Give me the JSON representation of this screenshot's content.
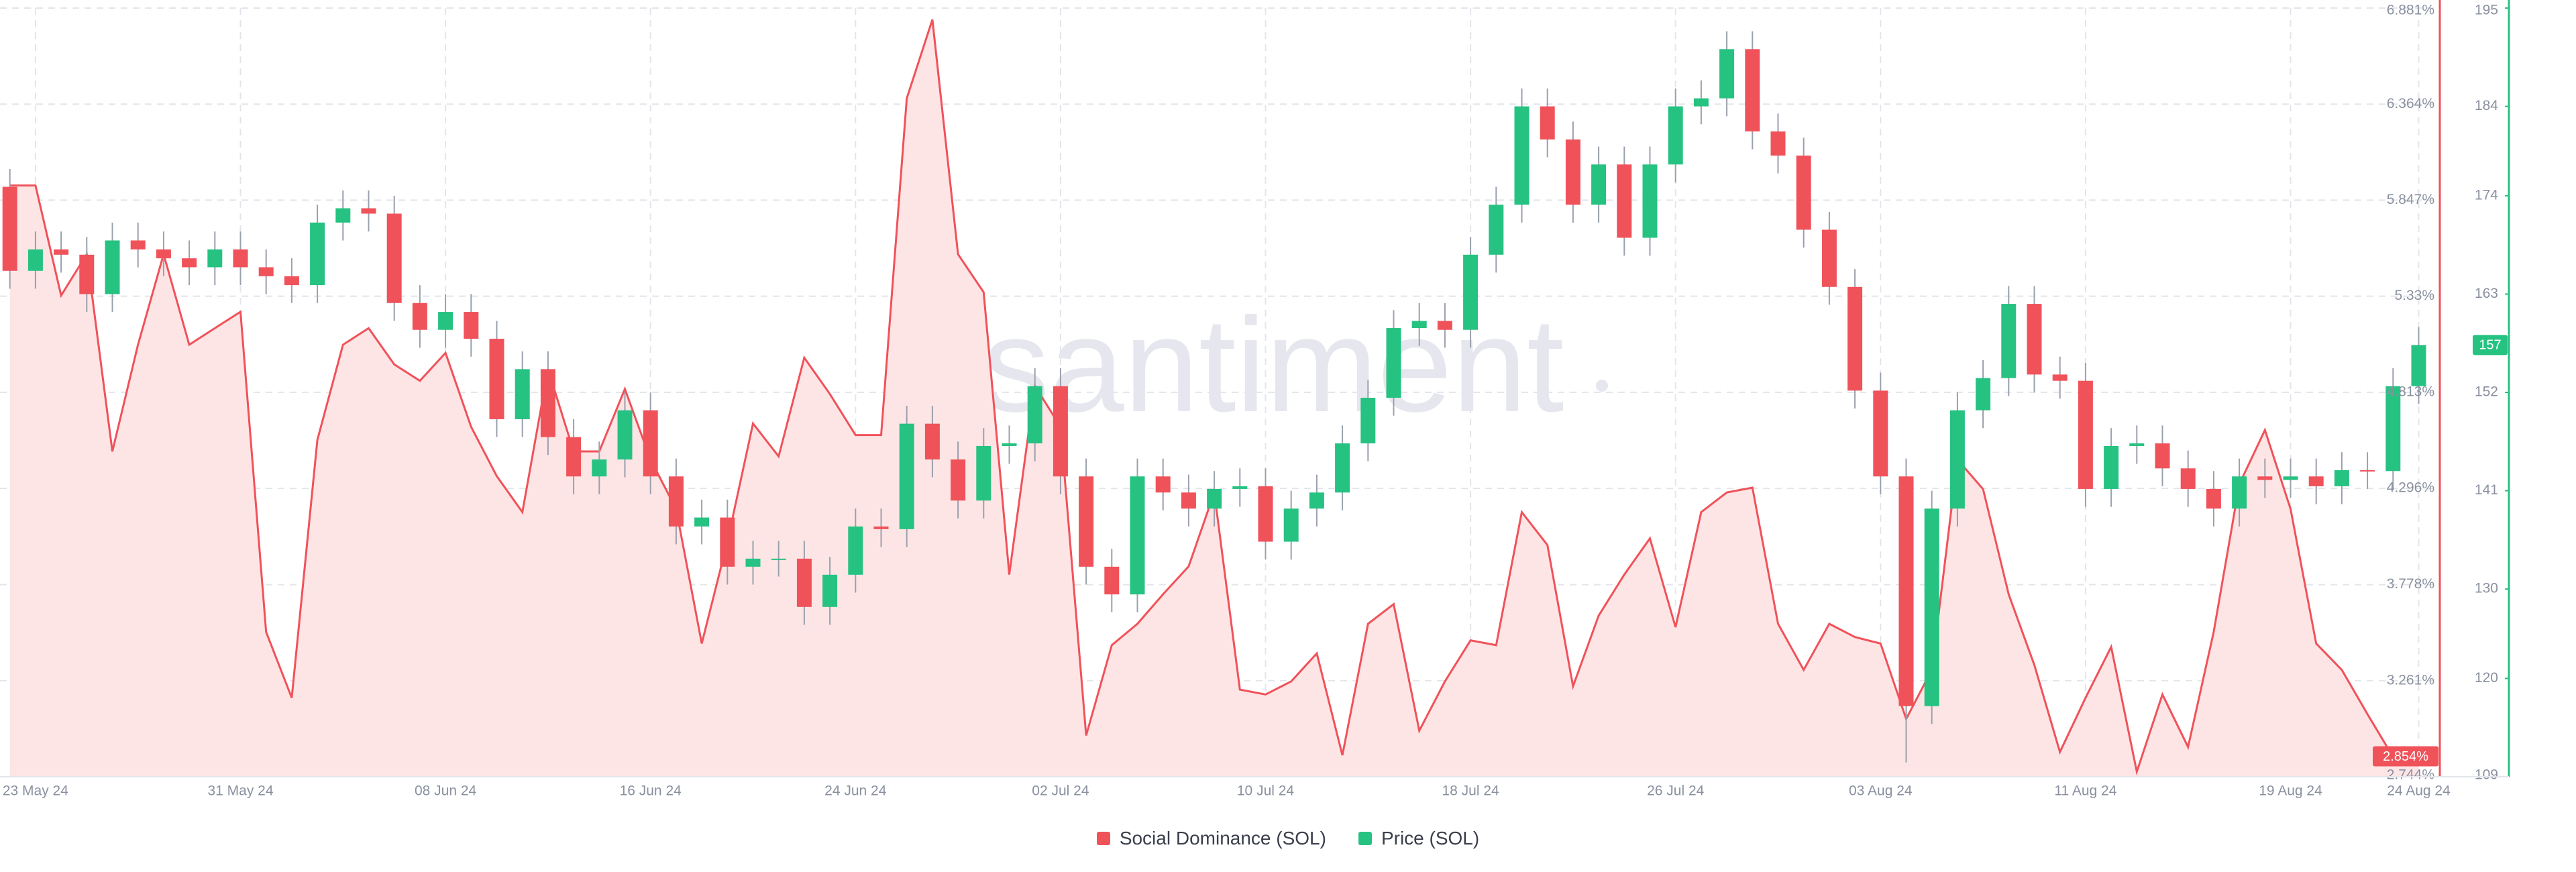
{
  "chart_data": {
    "type": "combo",
    "watermark": "santiment",
    "x": [
      "22 May 24",
      "23 May 24",
      "24 May 24",
      "25 May 24",
      "26 May 24",
      "27 May 24",
      "28 May 24",
      "29 May 24",
      "30 May 24",
      "31 May 24",
      "01 Jun 24",
      "02 Jun 24",
      "03 Jun 24",
      "04 Jun 24",
      "05 Jun 24",
      "06 Jun 24",
      "07 Jun 24",
      "08 Jun 24",
      "09 Jun 24",
      "10 Jun 24",
      "11 Jun 24",
      "12 Jun 24",
      "13 Jun 24",
      "14 Jun 24",
      "15 Jun 24",
      "16 Jun 24",
      "17 Jun 24",
      "18 Jun 24",
      "19 Jun 24",
      "20 Jun 24",
      "21 Jun 24",
      "22 Jun 24",
      "23 Jun 24",
      "24 Jun 24",
      "25 Jun 24",
      "26 Jun 24",
      "27 Jun 24",
      "28 Jun 24",
      "29 Jun 24",
      "30 Jun 24",
      "01 Jul 24",
      "02 Jul 24",
      "03 Jul 24",
      "04 Jul 24",
      "05 Jul 24",
      "06 Jul 24",
      "07 Jul 24",
      "08 Jul 24",
      "09 Jul 24",
      "10 Jul 24",
      "11 Jul 24",
      "12 Jul 24",
      "13 Jul 24",
      "14 Jul 24",
      "15 Jul 24",
      "16 Jul 24",
      "17 Jul 24",
      "18 Jul 24",
      "19 Jul 24",
      "20 Jul 24",
      "21 Jul 24",
      "22 Jul 24",
      "23 Jul 24",
      "24 Jul 24",
      "25 Jul 24",
      "26 Jul 24",
      "27 Jul 24",
      "28 Jul 24",
      "29 Jul 24",
      "30 Jul 24",
      "31 Jul 24",
      "01 Aug 24",
      "02 Aug 24",
      "03 Aug 24",
      "04 Aug 24",
      "05 Aug 24",
      "06 Aug 24",
      "07 Aug 24",
      "08 Aug 24",
      "09 Aug 24",
      "10 Aug 24",
      "11 Aug 24",
      "12 Aug 24",
      "13 Aug 24",
      "14 Aug 24",
      "15 Aug 24",
      "16 Aug 24",
      "17 Aug 24",
      "18 Aug 24",
      "19 Aug 24",
      "20 Aug 24",
      "21 Aug 24",
      "22 Aug 24",
      "23 Aug 24",
      "24 Aug 24"
    ],
    "xticks": [
      "23 May 24",
      "31 May 24",
      "08 Jun 24",
      "16 Jun 24",
      "24 Jun 24",
      "02 Jul 24",
      "10 Jul 24",
      "18 Jul 24",
      "26 Jul 24",
      "03 Aug 24",
      "11 Aug 24",
      "19 Aug 24",
      "24 Aug 24"
    ],
    "ylim": [
      2.744,
      6.881
    ],
    "yticks": [
      {
        "value": 6.881,
        "label": "6.881%"
      },
      {
        "value": 6.364,
        "label": "6.364%"
      },
      {
        "value": 5.847,
        "label": "5.847%"
      },
      {
        "value": 5.33,
        "label": "5.33%"
      },
      {
        "value": 4.813,
        "label": "4.813%"
      },
      {
        "value": 4.296,
        "label": "4.296%"
      },
      {
        "value": 3.778,
        "label": "3.778%"
      },
      {
        "value": 3.261,
        "label": "3.261%"
      },
      {
        "value": 2.744,
        "label": "2.744%"
      }
    ],
    "y2lim": [
      109,
      195
    ],
    "y2ticks": [
      195,
      184,
      174,
      163,
      152,
      141,
      130,
      120,
      109
    ],
    "grid": true,
    "legend": "bottom",
    "series": [
      {
        "name": "Social Dominance (SOL)",
        "type": "area",
        "color": "#f0525a",
        "fill": "#fde5e5",
        "last_label": "2.854%",
        "values": [
          5.926,
          5.926,
          5.334,
          5.556,
          4.495,
          5.069,
          5.556,
          5.069,
          5.158,
          5.246,
          3.523,
          3.169,
          4.557,
          5.069,
          5.158,
          4.963,
          4.875,
          5.025,
          4.627,
          4.362,
          4.168,
          4.937,
          4.495,
          4.495,
          4.831,
          4.451,
          4.185,
          3.461,
          4.009,
          4.645,
          4.468,
          4.999,
          4.804,
          4.583,
          4.583,
          6.395,
          6.819,
          5.556,
          5.352,
          3.832,
          4.848,
          4.627,
          2.966,
          3.452,
          3.567,
          3.726,
          3.876,
          4.274,
          3.213,
          3.187,
          3.257,
          3.408,
          2.86,
          3.567,
          3.673,
          2.992,
          3.257,
          3.478,
          3.452,
          4.168,
          3.991,
          3.231,
          3.611,
          3.832,
          4.027,
          3.549,
          4.168,
          4.274,
          4.3,
          3.567,
          3.319,
          3.567,
          3.496,
          3.461,
          3.055,
          3.319,
          4.451,
          4.292,
          3.726,
          3.346,
          2.877,
          3.169,
          3.443,
          2.771,
          3.187,
          2.904,
          3.523,
          4.318,
          4.61,
          4.185,
          3.461,
          3.319,
          3.081,
          2.851,
          2.854
        ]
      },
      {
        "name": "Price (SOL)",
        "type": "candlestick",
        "axis": "y2",
        "color": "#26c281",
        "up_color": "#26c281",
        "down_color": "#f0525a",
        "last_label": 157,
        "open": [
          175,
          165.6,
          168,
          167.4,
          163,
          169,
          168,
          167,
          166,
          168,
          166,
          165,
          164,
          171,
          172.6,
          172,
          162,
          159,
          161,
          158,
          149,
          154.6,
          147,
          142.6,
          144.5,
          150,
          142.6,
          137,
          138,
          132.5,
          133.4,
          133.4,
          128,
          131.6,
          137,
          136.7,
          148.5,
          144.5,
          139.9,
          146,
          146.3,
          152.7,
          142.6,
          132.5,
          129.4,
          142.6,
          140.8,
          139,
          141.2,
          141.5,
          135.3,
          139,
          140.8,
          146.3,
          151.4,
          159.2,
          160,
          159,
          167.4,
          173,
          184,
          180.3,
          173,
          177.5,
          169.3,
          177.5,
          184,
          184.9,
          190.4,
          181.2,
          178.5,
          170.2,
          163.8,
          152.2,
          142.6,
          116.9,
          139,
          150,
          153.6,
          161.9,
          154,
          153.3,
          141.2,
          146,
          146.3,
          143.5,
          141.2,
          139,
          142.6,
          142.2,
          142.6,
          141.5,
          143.3,
          143.2,
          152.7
        ],
        "high": [
          177,
          170,
          170,
          169.4,
          171,
          171,
          170,
          169,
          170,
          170,
          168,
          167,
          173,
          174.6,
          174.6,
          174,
          164,
          163,
          163,
          160,
          156.6,
          156.6,
          149,
          146.5,
          152,
          152,
          144.6,
          140,
          140,
          135.4,
          135.4,
          135.4,
          133.6,
          139,
          139,
          150.5,
          150.5,
          146.5,
          148,
          148.3,
          154.7,
          154.7,
          144.6,
          134.5,
          144.6,
          144.6,
          142.8,
          143.2,
          143.5,
          143.5,
          141,
          142.8,
          148.3,
          153.4,
          161.2,
          162,
          162,
          169.4,
          175,
          186,
          186,
          182.3,
          179.5,
          179.5,
          179.5,
          186,
          186.9,
          192.4,
          192.4,
          183.2,
          180.5,
          172.2,
          165.8,
          154.2,
          144.6,
          141,
          152,
          155.6,
          163.9,
          163.9,
          156,
          155.3,
          148,
          148.3,
          148.3,
          145.5,
          143.2,
          144.6,
          144.6,
          144.6,
          144.6,
          145.3,
          145.3,
          154.7,
          159.3
        ],
        "low": [
          163.6,
          163.6,
          165.4,
          161,
          161,
          166,
          165,
          164,
          164,
          164,
          163,
          162,
          162,
          169,
          170,
          160,
          157,
          157,
          156,
          147,
          147,
          145,
          140.6,
          140.6,
          142.5,
          140.6,
          135,
          135,
          130.5,
          130.5,
          131.4,
          126,
          126,
          129.6,
          134.7,
          134.7,
          142.5,
          137.9,
          137.9,
          144,
          144.3,
          140.6,
          130.5,
          127.4,
          127.4,
          138.8,
          137,
          137,
          139.2,
          133.3,
          133.3,
          137,
          138.8,
          144.3,
          149.4,
          157.2,
          157,
          157,
          165.4,
          171,
          178.3,
          171,
          171,
          167.3,
          167.3,
          175.5,
          182,
          182.9,
          179.2,
          176.5,
          168.2,
          161.8,
          150.2,
          140.6,
          110.6,
          114.9,
          137,
          148,
          151.6,
          152,
          151.3,
          139.2,
          139.2,
          144,
          141.5,
          139.2,
          137,
          137,
          140.2,
          140.2,
          139.5,
          139.5,
          141.2,
          141.2,
          150.7
        ],
        "close": [
          165.6,
          168,
          167.4,
          163,
          169,
          168,
          167,
          166,
          168,
          166,
          165,
          164,
          171,
          172.6,
          172,
          162,
          159,
          161,
          158,
          149,
          154.6,
          147,
          142.6,
          144.5,
          150,
          142.6,
          137,
          138,
          132.5,
          133.4,
          133.4,
          128,
          131.6,
          137,
          136.7,
          148.5,
          144.5,
          139.9,
          146,
          146.3,
          152.7,
          142.6,
          132.5,
          129.4,
          142.6,
          140.8,
          139,
          141.2,
          141.5,
          135.3,
          139,
          140.8,
          146.3,
          151.4,
          159.2,
          160,
          159,
          167.4,
          173,
          184,
          180.3,
          173,
          177.5,
          169.3,
          177.5,
          184,
          184.9,
          190.4,
          181.2,
          178.5,
          170.2,
          163.8,
          152.2,
          142.6,
          116.9,
          139,
          150,
          153.6,
          161.9,
          154,
          153.3,
          141.2,
          146,
          146.3,
          143.5,
          141.2,
          139,
          142.6,
          142.2,
          142.6,
          141.5,
          143.3,
          143.2,
          152.7,
          157.3
        ]
      }
    ]
  }
}
